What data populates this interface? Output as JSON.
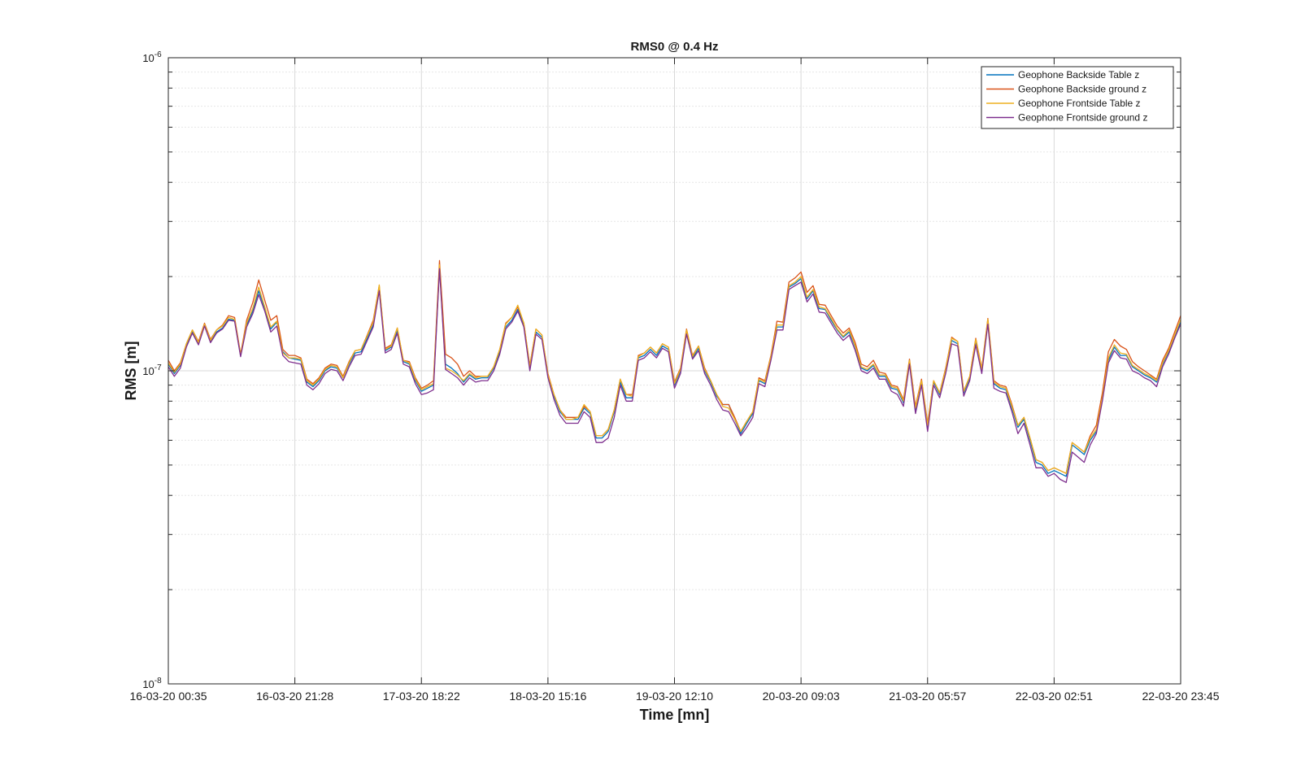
{
  "chart_data": {
    "type": "line",
    "title": "RMS0 @ 0.4 Hz",
    "xlabel": "Time [mn]",
    "ylabel": "RMS [m]",
    "yscale": "log",
    "ylim": [
      1e-08,
      1e-06
    ],
    "y_ticks": [
      {
        "value": 1e-06,
        "base": "10",
        "exp": "-6"
      },
      {
        "value": 1e-07,
        "base": "10",
        "exp": "-7"
      },
      {
        "value": 1e-08,
        "base": "10",
        "exp": "-8"
      }
    ],
    "x_ticks": [
      "16-03-20 00:35",
      "16-03-20 21:28",
      "17-03-20 18:22",
      "18-03-20 15:16",
      "19-03-20 12:10",
      "20-03-20 09:03",
      "21-03-20 05:57",
      "22-03-20 02:51",
      "22-03-20 23:45"
    ],
    "grid": true,
    "legend_position": "top-right",
    "series": [
      {
        "name": "Geophone Backside Table z",
        "color": "#0072BD",
        "values": [
          1.05e-07,
          9.8e-08,
          1.04e-07,
          1.2e-07,
          1.33e-07,
          1.22e-07,
          1.4e-07,
          1.24e-07,
          1.33e-07,
          1.37e-07,
          1.46e-07,
          1.45e-07,
          1.12e-07,
          1.4e-07,
          1.55e-07,
          1.8e-07,
          1.58e-07,
          1.36e-07,
          1.43e-07,
          1.15e-07,
          1.1e-07,
          1.09e-07,
          1.08e-07,
          9.2e-08,
          8.9e-08,
          9.3e-08,
          1e-07,
          1.03e-07,
          1.02e-07,
          9.5e-08,
          1.05e-07,
          1.14e-07,
          1.15e-07,
          1.27e-07,
          1.4e-07,
          1.82e-07,
          1.16e-07,
          1.19e-07,
          1.34e-07,
          1.07e-07,
          1.05e-07,
          9.3e-08,
          8.6e-08,
          8.8e-08,
          9e-08,
          2.15e-07,
          1.05e-07,
          1.02e-07,
          9.8e-08,
          9.2e-08,
          9.7e-08,
          9.4e-08,
          9.5e-08,
          9.5e-08,
          1.02e-07,
          1.15e-07,
          1.38e-07,
          1.45e-07,
          1.57e-07,
          1.4e-07,
          1.02e-07,
          1.33e-07,
          1.28e-07,
          9.6e-08,
          8.3e-08,
          7.4e-08,
          7e-08,
          7e-08,
          7e-08,
          7.6e-08,
          7.3e-08,
          6.1e-08,
          6.1e-08,
          6.4e-08,
          7.4e-08,
          9.2e-08,
          8.2e-08,
          8.2e-08,
          1.1e-07,
          1.12e-07,
          1.17e-07,
          1.12e-07,
          1.2e-07,
          1.17e-07,
          9e-08,
          1e-07,
          1.33e-07,
          1.1e-07,
          1.18e-07,
          1e-07,
          9.2e-08,
          8.3e-08,
          7.8e-08,
          7.8e-08,
          7e-08,
          6.3e-08,
          6.8e-08,
          7.3e-08,
          9.3e-08,
          9.1e-08,
          1.1e-07,
          1.38e-07,
          1.38e-07,
          1.85e-07,
          1.9e-07,
          1.97e-07,
          1.7e-07,
          1.8e-07,
          1.58e-07,
          1.57e-07,
          1.45e-07,
          1.35e-07,
          1.28e-07,
          1.33e-07,
          1.19e-07,
          1.02e-07,
          1e-07,
          1.04e-07,
          9.6e-08,
          9.6e-08,
          8.8e-08,
          8.7e-08,
          7.9e-08,
          1.07e-07,
          7.5e-08,
          9.2e-08,
          6.6e-08,
          9.2e-08,
          8.4e-08,
          1e-07,
          1.25e-07,
          1.22e-07,
          8.5e-08,
          9.5e-08,
          1.24e-07,
          1e-07,
          1.43e-07,
          9.1e-08,
          8.8e-08,
          8.7e-08,
          7.6e-08,
          6.6e-08,
          7e-08,
          6e-08,
          5.1e-08,
          5e-08,
          4.7e-08,
          4.8e-08,
          4.7e-08,
          4.6e-08,
          5.8e-08,
          5.6e-08,
          5.4e-08,
          6e-08,
          6.4e-08,
          8.1e-08,
          1.08e-07,
          1.19e-07,
          1.12e-07,
          1.12e-07,
          1.03e-07,
          1e-07,
          9.7e-08,
          9.5e-08,
          9.2e-08,
          1.05e-07,
          1.15e-07,
          1.28e-07,
          1.43e-07
        ]
      },
      {
        "name": "Geophone Backside ground z",
        "color": "#D95319",
        "values": [
          1.08e-07,
          1e-07,
          1.06e-07,
          1.22e-07,
          1.35e-07,
          1.24e-07,
          1.42e-07,
          1.26e-07,
          1.35e-07,
          1.4e-07,
          1.5e-07,
          1.48e-07,
          1.13e-07,
          1.45e-07,
          1.65e-07,
          1.95e-07,
          1.68e-07,
          1.45e-07,
          1.5e-07,
          1.17e-07,
          1.12e-07,
          1.12e-07,
          1.1e-07,
          9.4e-08,
          9.1e-08,
          9.5e-08,
          1.02e-07,
          1.05e-07,
          1.04e-07,
          9.6e-08,
          1.07e-07,
          1.16e-07,
          1.17e-07,
          1.3e-07,
          1.45e-07,
          1.87e-07,
          1.18e-07,
          1.21e-07,
          1.37e-07,
          1.08e-07,
          1.07e-07,
          9.5e-08,
          8.8e-08,
          9e-08,
          9.3e-08,
          2.25e-07,
          1.13e-07,
          1.1e-07,
          1.05e-07,
          9.6e-08,
          1e-07,
          9.6e-08,
          9.6e-08,
          9.6e-08,
          1.03e-07,
          1.17e-07,
          1.42e-07,
          1.48e-07,
          1.6e-07,
          1.42e-07,
          1.04e-07,
          1.36e-07,
          1.3e-07,
          9.8e-08,
          8.4e-08,
          7.5e-08,
          7.1e-08,
          7.1e-08,
          7.1e-08,
          7.7e-08,
          7.4e-08,
          6.2e-08,
          6.2e-08,
          6.5e-08,
          7.5e-08,
          9.4e-08,
          8.4e-08,
          8.4e-08,
          1.12e-07,
          1.14e-07,
          1.19e-07,
          1.14e-07,
          1.22e-07,
          1.19e-07,
          9.2e-08,
          1.02e-07,
          1.36e-07,
          1.12e-07,
          1.2e-07,
          1.02e-07,
          9.3e-08,
          8.4e-08,
          7.8e-08,
          7.8e-08,
          7.1e-08,
          6.4e-08,
          6.9e-08,
          7.4e-08,
          9.5e-08,
          9.3e-08,
          1.12e-07,
          1.44e-07,
          1.43e-07,
          1.92e-07,
          1.98e-07,
          2.07e-07,
          1.78e-07,
          1.87e-07,
          1.63e-07,
          1.62e-07,
          1.5e-07,
          1.39e-07,
          1.32e-07,
          1.37e-07,
          1.23e-07,
          1.05e-07,
          1.03e-07,
          1.08e-07,
          9.9e-08,
          9.8e-08,
          9e-08,
          8.9e-08,
          8.1e-08,
          1.09e-07,
          7.7e-08,
          9.4e-08,
          6.8e-08,
          9.3e-08,
          8.5e-08,
          1.02e-07,
          1.28e-07,
          1.24e-07,
          8.6e-08,
          9.6e-08,
          1.27e-07,
          1.02e-07,
          1.47e-07,
          9.3e-08,
          9e-08,
          8.9e-08,
          7.8e-08,
          6.7e-08,
          7.1e-08,
          6.1e-08,
          5.2e-08,
          5.1e-08,
          4.8e-08,
          4.9e-08,
          4.8e-08,
          4.7e-08,
          5.9e-08,
          5.7e-08,
          5.5e-08,
          6.2e-08,
          6.7e-08,
          8.5e-08,
          1.15e-07,
          1.26e-07,
          1.2e-07,
          1.17e-07,
          1.07e-07,
          1.03e-07,
          1e-07,
          9.7e-08,
          9.4e-08,
          1.08e-07,
          1.18e-07,
          1.33e-07,
          1.5e-07
        ]
      },
      {
        "name": "Geophone Frontside Table z",
        "color": "#EDB120",
        "values": [
          1.06e-07,
          9.9e-08,
          1.05e-07,
          1.22e-07,
          1.35e-07,
          1.23e-07,
          1.41e-07,
          1.25e-07,
          1.35e-07,
          1.39e-07,
          1.48e-07,
          1.46e-07,
          1.12e-07,
          1.42e-07,
          1.58e-07,
          1.85e-07,
          1.6e-07,
          1.38e-07,
          1.44e-07,
          1.14e-07,
          1.1e-07,
          1.1e-07,
          1.09e-07,
          9.3e-08,
          9e-08,
          9.4e-08,
          1.01e-07,
          1.04e-07,
          1.03e-07,
          9.5e-08,
          1.06e-07,
          1.16e-07,
          1.17e-07,
          1.29e-07,
          1.43e-07,
          1.88e-07,
          1.17e-07,
          1.2e-07,
          1.37e-07,
          1.08e-07,
          1.06e-07,
          9.4e-08,
          8.7e-08,
          8.9e-08,
          9.1e-08,
          2.18e-07,
          1.02e-07,
          1e-07,
          9.7e-08,
          9.3e-08,
          9.8e-08,
          9.5e-08,
          9.6e-08,
          9.6e-08,
          1.03e-07,
          1.17e-07,
          1.41e-07,
          1.48e-07,
          1.62e-07,
          1.42e-07,
          1.03e-07,
          1.36e-07,
          1.3e-07,
          9.7e-08,
          8.4e-08,
          7.5e-08,
          7e-08,
          7e-08,
          7.1e-08,
          7.8e-08,
          7.4e-08,
          6.2e-08,
          6.2e-08,
          6.5e-08,
          7.5e-08,
          9.4e-08,
          8.4e-08,
          8.3e-08,
          1.11e-07,
          1.14e-07,
          1.19e-07,
          1.14e-07,
          1.22e-07,
          1.19e-07,
          9.1e-08,
          1.01e-07,
          1.35e-07,
          1.11e-07,
          1.2e-07,
          1.01e-07,
          9.3e-08,
          8.4e-08,
          7.7e-08,
          7.6e-08,
          7e-08,
          6.4e-08,
          6.9e-08,
          7.4e-08,
          9.4e-08,
          9.2e-08,
          1.11e-07,
          1.4e-07,
          1.4e-07,
          1.87e-07,
          1.92e-07,
          2e-07,
          1.72e-07,
          1.82e-07,
          1.6e-07,
          1.58e-07,
          1.47e-07,
          1.36e-07,
          1.29e-07,
          1.35e-07,
          1.2e-07,
          1.03e-07,
          1.01e-07,
          1.05e-07,
          9.7e-08,
          9.7e-08,
          8.9e-08,
          8.8e-08,
          8e-08,
          1.08e-07,
          7.6e-08,
          9.3e-08,
          6.7e-08,
          9.3e-08,
          8.5e-08,
          1.01e-07,
          1.27e-07,
          1.24e-07,
          8.6e-08,
          9.6e-08,
          1.26e-07,
          1.01e-07,
          1.46e-07,
          9.2e-08,
          8.9e-08,
          8.8e-08,
          7.7e-08,
          6.7e-08,
          7.1e-08,
          6.1e-08,
          5.2e-08,
          5.1e-08,
          4.8e-08,
          4.9e-08,
          4.8e-08,
          4.7e-08,
          5.9e-08,
          5.7e-08,
          5.5e-08,
          6.1e-08,
          6.5e-08,
          8.2e-08,
          1.1e-07,
          1.21e-07,
          1.14e-07,
          1.13e-07,
          1.04e-07,
          1.01e-07,
          9.8e-08,
          9.6e-08,
          9.3e-08,
          1.06e-07,
          1.16e-07,
          1.3e-07,
          1.46e-07
        ]
      },
      {
        "name": "Geophone Frontside ground z",
        "color": "#7E2F8E",
        "values": [
          1.03e-07,
          9.6e-08,
          1.02e-07,
          1.19e-07,
          1.32e-07,
          1.21e-07,
          1.39e-07,
          1.23e-07,
          1.32e-07,
          1.36e-07,
          1.45e-07,
          1.44e-07,
          1.11e-07,
          1.38e-07,
          1.52e-07,
          1.75e-07,
          1.55e-07,
          1.33e-07,
          1.39e-07,
          1.12e-07,
          1.07e-07,
          1.06e-07,
          1.05e-07,
          9e-08,
          8.7e-08,
          9.1e-08,
          9.8e-08,
          1.01e-07,
          1e-07,
          9.3e-08,
          1.03e-07,
          1.12e-07,
          1.13e-07,
          1.25e-07,
          1.38e-07,
          1.8e-07,
          1.14e-07,
          1.17e-07,
          1.32e-07,
          1.05e-07,
          1.03e-07,
          9.1e-08,
          8.4e-08,
          8.5e-08,
          8.7e-08,
          2.12e-07,
          1.01e-07,
          9.8e-08,
          9.5e-08,
          9e-08,
          9.5e-08,
          9.2e-08,
          9.3e-08,
          9.3e-08,
          1e-07,
          1.13e-07,
          1.36e-07,
          1.43e-07,
          1.55e-07,
          1.38e-07,
          1e-07,
          1.31e-07,
          1.26e-07,
          9.5e-08,
          8.1e-08,
          7.2e-08,
          6.8e-08,
          6.8e-08,
          6.8e-08,
          7.4e-08,
          7.1e-08,
          5.9e-08,
          5.9e-08,
          6.1e-08,
          7.1e-08,
          9e-08,
          8e-08,
          8e-08,
          1.08e-07,
          1.1e-07,
          1.15e-07,
          1.1e-07,
          1.18e-07,
          1.15e-07,
          8.8e-08,
          9.8e-08,
          1.31e-07,
          1.09e-07,
          1.16e-07,
          9.8e-08,
          9e-08,
          8.1e-08,
          7.5e-08,
          7.4e-08,
          6.8e-08,
          6.2e-08,
          6.6e-08,
          7.1e-08,
          9.1e-08,
          8.9e-08,
          1.08e-07,
          1.35e-07,
          1.35e-07,
          1.82e-07,
          1.87e-07,
          1.92e-07,
          1.66e-07,
          1.76e-07,
          1.54e-07,
          1.53e-07,
          1.42e-07,
          1.32e-07,
          1.25e-07,
          1.3e-07,
          1.16e-07,
          1e-07,
          9.8e-08,
          1.02e-07,
          9.4e-08,
          9.4e-08,
          8.6e-08,
          8.4e-08,
          7.7e-08,
          1.05e-07,
          7.3e-08,
          9e-08,
          6.4e-08,
          9e-08,
          8.2e-08,
          9.8e-08,
          1.22e-07,
          1.2e-07,
          8.3e-08,
          9.3e-08,
          1.21e-07,
          9.8e-08,
          1.41e-07,
          8.8e-08,
          8.6e-08,
          8.5e-08,
          7.4e-08,
          6.3e-08,
          6.8e-08,
          5.8e-08,
          4.9e-08,
          4.9e-08,
          4.6e-08,
          4.7e-08,
          4.5e-08,
          4.4e-08,
          5.5e-08,
          5.3e-08,
          5.1e-08,
          5.8e-08,
          6.3e-08,
          8e-08,
          1.06e-07,
          1.16e-07,
          1.1e-07,
          1.09e-07,
          1e-07,
          9.8e-08,
          9.5e-08,
          9.3e-08,
          8.9e-08,
          1.03e-07,
          1.13e-07,
          1.27e-07,
          1.41e-07
        ]
      }
    ]
  }
}
